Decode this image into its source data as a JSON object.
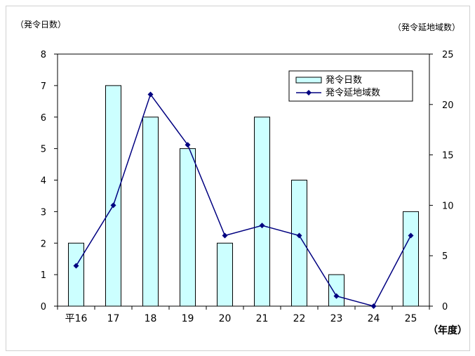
{
  "chart_data": {
    "type": "bar",
    "left_unit": "（発令日数）",
    "right_unit": "（発令延地域数）",
    "x_unit": "（年度）",
    "categories": [
      "平16",
      "17",
      "18",
      "19",
      "20",
      "21",
      "22",
      "23",
      "24",
      "25"
    ],
    "y_ticks": [
      "0",
      "1",
      "2",
      "3",
      "4",
      "5",
      "6",
      "7",
      "8"
    ],
    "y2_ticks": [
      "0",
      "5",
      "10",
      "15",
      "20",
      "25"
    ],
    "ylim": [
      0,
      8
    ],
    "y2lim": [
      0,
      25
    ],
    "series": [
      {
        "name": "発令日数",
        "type": "bar",
        "axis": "left",
        "color": "#ccffff",
        "values": [
          2,
          7,
          6,
          5,
          2,
          6,
          4,
          1,
          0,
          3
        ]
      },
      {
        "name": "発令延地域数",
        "type": "line",
        "axis": "right",
        "color": "#000080",
        "values": [
          4,
          10,
          21,
          16,
          7,
          8,
          7,
          1,
          0,
          7
        ]
      }
    ],
    "legend_position": "top-right",
    "grid": false
  }
}
